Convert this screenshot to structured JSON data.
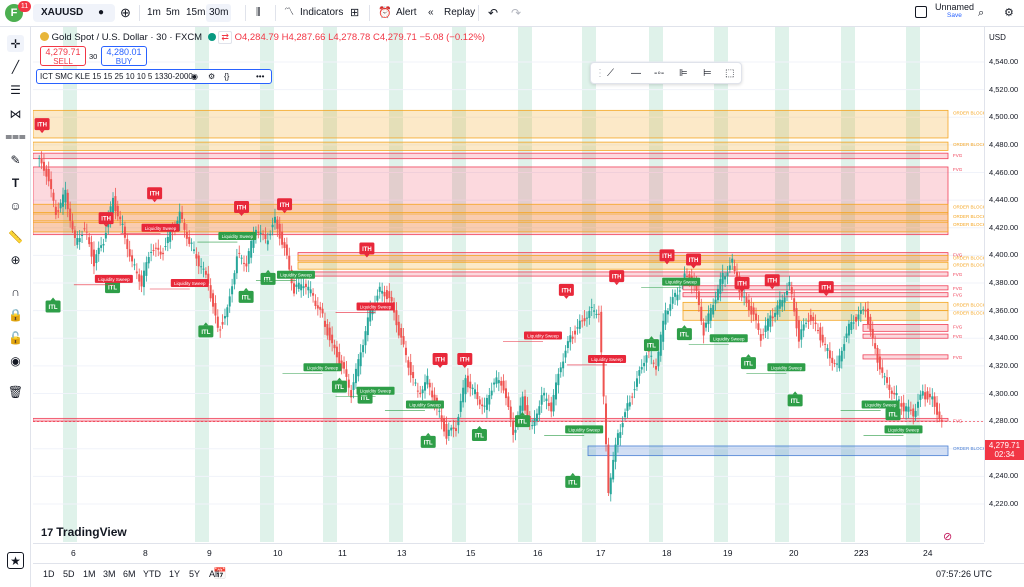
{
  "topbar": {
    "badge": "11",
    "logo_letter": "F",
    "symbol": "XAUUSD",
    "intervals": [
      "1m",
      "5m",
      "15m",
      "30m"
    ],
    "indicators_label": "Indicators",
    "alert_label": "Alert",
    "replay_label": "Replay",
    "layout_name": "Unnamed",
    "layout_status": "Save"
  },
  "legend": {
    "title": "Gold Spot / U.S. Dollar · 30 · FXCM",
    "open": "O4,284.79",
    "high": "H4,287.66",
    "low": "L4,278.78",
    "close": "C4,279.71",
    "change": "−5.08 (−0.12%)",
    "sell_price": "4,279.71",
    "sell_label": "SELL",
    "spread": "30",
    "buy_price": "4,280.01",
    "buy_label": "BUY",
    "indicator": "ICT SMC KLE 15 15 25 10 10 5 1330-2000"
  },
  "price_axis": {
    "currency": "USD",
    "labels": [
      "4,540.00",
      "4,520.00",
      "4,500.00",
      "4,480.00",
      "4,460.00",
      "4,440.00",
      "4,420.00",
      "4,400.00",
      "4,380.00",
      "4,360.00",
      "4,340.00",
      "4,320.00",
      "4,300.00",
      "4,280.00",
      "4,260.00",
      "4,240.00",
      "4,220.00"
    ],
    "last_price": "4,279.71",
    "countdown": "02:34"
  },
  "time_axis": {
    "labels": [
      "6",
      "8",
      "9",
      "10",
      "11",
      "13",
      "15",
      "16",
      "17",
      "18",
      "19",
      "20",
      "22",
      "23",
      "24"
    ]
  },
  "bottombar": {
    "ranges": [
      "1D",
      "5D",
      "1M",
      "3M",
      "6M",
      "YTD",
      "1Y",
      "5Y",
      "All"
    ],
    "clock": "07:57:26 UTC"
  },
  "watermark": "TradingView",
  "chart_data": {
    "type": "candlestick",
    "symbol": "XAUUSD",
    "interval": "30",
    "ylim": [
      4210,
      4550
    ],
    "days": [
      "6",
      "8",
      "9",
      "10",
      "11",
      "13",
      "15",
      "16",
      "17",
      "18",
      "19",
      "20",
      "22",
      "23",
      "24"
    ],
    "path_y": [
      4470,
      4460,
      4430,
      4445,
      4410,
      4420,
      4395,
      4410,
      4440,
      4420,
      4395,
      4380,
      4405,
      4400,
      4415,
      4430,
      4410,
      4395,
      4380,
      4345,
      4360,
      4400,
      4395,
      4420,
      4410,
      4425,
      4405,
      4375,
      4380,
      4370,
      4355,
      4335,
      4320,
      4300,
      4330,
      4360,
      4375,
      4370,
      4345,
      4320,
      4300,
      4310,
      4290,
      4270,
      4275,
      4310,
      4300,
      4290,
      4310,
      4305,
      4270,
      4295,
      4275,
      4300,
      4290,
      4320,
      4340,
      4350,
      4360,
      4360,
      4230,
      4270,
      4290,
      4310,
      4330,
      4320,
      4360,
      4370,
      4385,
      4380,
      4345,
      4365,
      4385,
      4395,
      4370,
      4360,
      4340,
      4355,
      4365,
      4380,
      4340,
      4355,
      4345,
      4330,
      4320,
      4345,
      4355,
      4360,
      4330,
      4310,
      4300,
      4290,
      4285,
      4300,
      4295,
      4280
    ],
    "zones": [
      {
        "label": "ORDER BLOCK",
        "type": "order_block",
        "top": 4505,
        "bottom": 4485
      },
      {
        "label": "ORDER BLOCK",
        "type": "order_block",
        "top": 4482,
        "bottom": 4476
      },
      {
        "label": "FVG",
        "type": "fvg",
        "top": 4474,
        "bottom": 4470
      },
      {
        "label": "FVG",
        "type": "fvg",
        "top": 4464,
        "bottom": 4415
      },
      {
        "label": "ORDER BLOCK",
        "type": "order_block",
        "top": 4437,
        "bottom": 4431
      },
      {
        "label": "ORDER BLOCK",
        "type": "order_block",
        "top": 4430,
        "bottom": 4425
      },
      {
        "label": "ORDER BLOCK",
        "type": "order_block",
        "top": 4424,
        "bottom": 4417
      },
      {
        "label": "FVG",
        "type": "fvg",
        "top": 4402,
        "bottom": 4396
      },
      {
        "label": "ORDER BLOCK",
        "type": "order_block",
        "top": 4400,
        "bottom": 4396
      },
      {
        "label": "ORDER BLOCK",
        "type": "order_block",
        "top": 4395,
        "bottom": 4390
      },
      {
        "label": "FVG",
        "type": "fvg",
        "top": 4388,
        "bottom": 4385
      },
      {
        "label": "FVG",
        "type": "fvg",
        "top": 4378,
        "bottom": 4375
      },
      {
        "label": "FVG",
        "type": "fvg",
        "top": 4373,
        "bottom": 4370
      },
      {
        "label": "ORDER BLOCK",
        "type": "order_block",
        "top": 4366,
        "bottom": 4360
      },
      {
        "label": "ORDER BLOCK",
        "type": "order_block",
        "top": 4360,
        "bottom": 4353
      },
      {
        "label": "FVG",
        "type": "fvg",
        "top": 4350,
        "bottom": 4345
      },
      {
        "label": "FVG",
        "type": "fvg",
        "top": 4343,
        "bottom": 4340
      },
      {
        "label": "FVG",
        "type": "fvg",
        "top": 4328,
        "bottom": 4325
      },
      {
        "label": "FVG",
        "type": "fvg",
        "top": 4282,
        "bottom": 4280
      },
      {
        "label": "ORDER BLOCK",
        "type": "order_block",
        "top": 4262,
        "bottom": 4255
      }
    ],
    "markers": [
      {
        "text": "ITH",
        "kind": "high",
        "x": 0.005,
        "price": 4495
      },
      {
        "text": "ITH",
        "kind": "high",
        "x": 0.075,
        "price": 4427
      },
      {
        "text": "ITH",
        "kind": "high",
        "x": 0.128,
        "price": 4445
      },
      {
        "text": "ITH",
        "kind": "high",
        "x": 0.223,
        "price": 4435
      },
      {
        "text": "ITH",
        "kind": "high",
        "x": 0.27,
        "price": 4437
      },
      {
        "text": "ITH",
        "kind": "high",
        "x": 0.36,
        "price": 4405
      },
      {
        "text": "ITH",
        "kind": "high",
        "x": 0.44,
        "price": 4325
      },
      {
        "text": "ITH",
        "kind": "high",
        "x": 0.467,
        "price": 4325
      },
      {
        "text": "ITH",
        "kind": "high",
        "x": 0.578,
        "price": 4375
      },
      {
        "text": "ITH",
        "kind": "high",
        "x": 0.633,
        "price": 4385
      },
      {
        "text": "ITH",
        "kind": "high",
        "x": 0.688,
        "price": 4400
      },
      {
        "text": "ITH",
        "kind": "high",
        "x": 0.717,
        "price": 4397
      },
      {
        "text": "ITH",
        "kind": "high",
        "x": 0.77,
        "price": 4380
      },
      {
        "text": "ITH",
        "kind": "high",
        "x": 0.803,
        "price": 4382
      },
      {
        "text": "ITH",
        "kind": "high",
        "x": 0.862,
        "price": 4377
      },
      {
        "text": "ITL",
        "kind": "low",
        "x": 0.017,
        "price": 4363
      },
      {
        "text": "ITL",
        "kind": "low",
        "x": 0.082,
        "price": 4377
      },
      {
        "text": "ITL",
        "kind": "low",
        "x": 0.184,
        "price": 4345
      },
      {
        "text": "ITL",
        "kind": "low",
        "x": 0.228,
        "price": 4370
      },
      {
        "text": "ITL",
        "kind": "low",
        "x": 0.252,
        "price": 4383
      },
      {
        "text": "ITL",
        "kind": "low",
        "x": 0.33,
        "price": 4305
      },
      {
        "text": "ITL",
        "kind": "low",
        "x": 0.358,
        "price": 4297
      },
      {
        "text": "ITL",
        "kind": "low",
        "x": 0.427,
        "price": 4265
      },
      {
        "text": "ITL",
        "kind": "low",
        "x": 0.483,
        "price": 4270
      },
      {
        "text": "ITL",
        "kind": "low",
        "x": 0.53,
        "price": 4280
      },
      {
        "text": "ITL",
        "kind": "low",
        "x": 0.585,
        "price": 4236
      },
      {
        "text": "ITL",
        "kind": "low",
        "x": 0.671,
        "price": 4335
      },
      {
        "text": "ITL",
        "kind": "low",
        "x": 0.707,
        "price": 4343
      },
      {
        "text": "ITL",
        "kind": "low",
        "x": 0.777,
        "price": 4322
      },
      {
        "text": "ITL",
        "kind": "low",
        "x": 0.828,
        "price": 4295
      },
      {
        "text": "ITL",
        "kind": "low",
        "x": 0.935,
        "price": 4285
      }
    ],
    "sweeps": [
      {
        "text": "Liquidity Sweep",
        "x": 0.135,
        "price": 4420
      },
      {
        "text": "Liquidity Sweep",
        "x": 0.219,
        "price": 4414
      },
      {
        "text": "Liquidity Sweep",
        "x": 0.084,
        "price": 4383
      },
      {
        "text": "Liquidity Sweep",
        "x": 0.167,
        "price": 4380
      },
      {
        "text": "Liquidity Sweep",
        "x": 0.283,
        "price": 4386
      },
      {
        "text": "Liquidity Sweep",
        "x": 0.37,
        "price": 4363
      },
      {
        "text": "Liquidity Sweep",
        "x": 0.312,
        "price": 4319
      },
      {
        "text": "Liquidity Sweep",
        "x": 0.37,
        "price": 4302
      },
      {
        "text": "Liquidity Sweep",
        "x": 0.424,
        "price": 4292
      },
      {
        "text": "Liquidity Sweep",
        "x": 0.553,
        "price": 4342
      },
      {
        "text": "Liquidity Sweep",
        "x": 0.598,
        "price": 4274
      },
      {
        "text": "Liquidity Sweep",
        "x": 0.623,
        "price": 4325
      },
      {
        "text": "Liquidity Sweep",
        "x": 0.704,
        "price": 4381
      },
      {
        "text": "Liquidity Sweep",
        "x": 0.756,
        "price": 4340
      },
      {
        "text": "Liquidity Sweep",
        "x": 0.819,
        "price": 4319
      },
      {
        "text": "Liquidity Sweep",
        "x": 0.922,
        "price": 4292
      },
      {
        "text": "Liquidity Sweep",
        "x": 0.947,
        "price": 4274
      }
    ]
  },
  "colors": {
    "up": "#26a69a",
    "down": "#ef5350",
    "ith": "#e8283a",
    "itl": "#2e9e48",
    "order_block": "#f5a623",
    "fvg": "#f04058",
    "session": "#dff2ea",
    "demand": "#4a7fd4"
  }
}
